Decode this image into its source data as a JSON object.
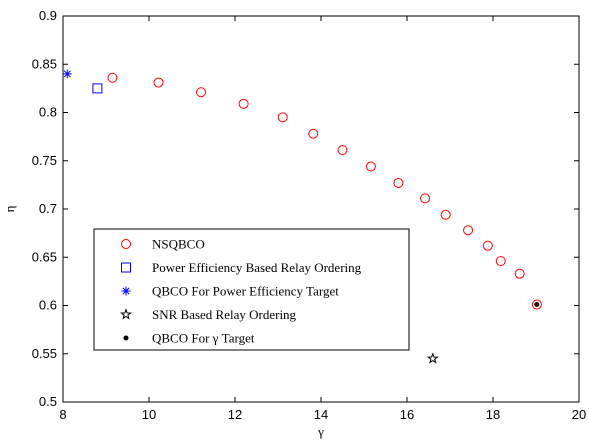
{
  "chart_data": {
    "type": "scatter",
    "xlabel": "γ",
    "ylabel": "η",
    "xlim": [
      8,
      20
    ],
    "ylim": [
      0.5,
      0.9
    ],
    "x_ticks": [
      8,
      10,
      12,
      14,
      16,
      18,
      20
    ],
    "y_ticks": [
      0.5,
      0.55,
      0.6,
      0.65,
      0.7,
      0.75,
      0.8,
      0.85,
      0.9
    ],
    "grid": false,
    "legend_position": "lower-left",
    "series": [
      {
        "name": "NSQBCO",
        "marker": "circle",
        "color": "#ff0000",
        "points": [
          [
            9.15,
            0.836
          ],
          [
            10.22,
            0.831
          ],
          [
            11.21,
            0.821
          ],
          [
            12.2,
            0.809
          ],
          [
            13.11,
            0.795
          ],
          [
            13.82,
            0.778
          ],
          [
            14.5,
            0.761
          ],
          [
            15.16,
            0.744
          ],
          [
            15.8,
            0.727
          ],
          [
            16.42,
            0.711
          ],
          [
            16.9,
            0.694
          ],
          [
            17.42,
            0.678
          ],
          [
            17.88,
            0.662
          ],
          [
            18.18,
            0.646
          ],
          [
            18.62,
            0.633
          ],
          [
            19.02,
            0.601
          ]
        ]
      },
      {
        "name": "Power Efficiency Based Relay Ordering",
        "marker": "square",
        "color": "#0000ff",
        "points": [
          [
            8.8,
            0.825
          ]
        ]
      },
      {
        "name": "QBCO For Power Efficiency Target",
        "marker": "asterisk",
        "color": "#0000ff",
        "points": [
          [
            8.1,
            0.84
          ]
        ]
      },
      {
        "name": "SNR Based Relay Ordering",
        "marker": "star",
        "color": "#000000",
        "points": [
          [
            16.6,
            0.545
          ]
        ]
      },
      {
        "name": "QBCO For γ Target",
        "marker": "dot",
        "color": "#000000",
        "points": [
          [
            19.02,
            0.601
          ]
        ]
      }
    ]
  }
}
